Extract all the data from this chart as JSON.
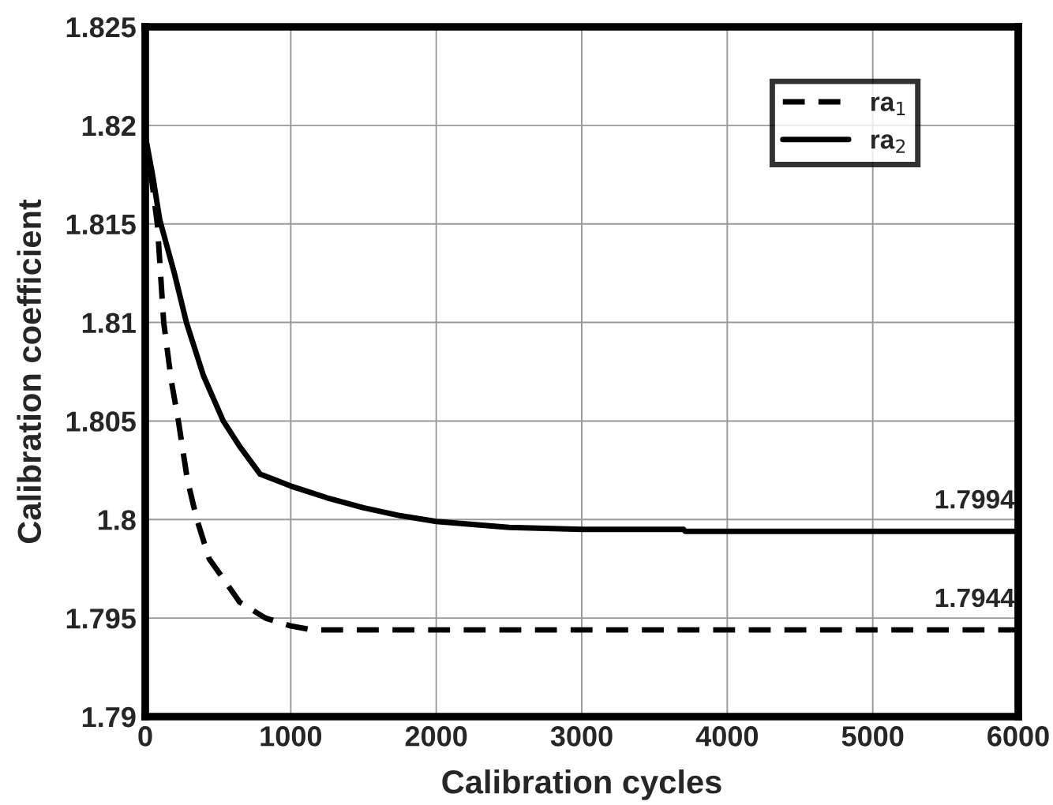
{
  "chart_data": {
    "type": "line",
    "xlabel": "Calibration cycles",
    "ylabel": "Calibration coefficient",
    "xlim": [
      0,
      6000
    ],
    "xticks": [
      0,
      1000,
      2000,
      3000,
      4000,
      5000,
      6000
    ],
    "ylim": [
      1.79,
      1.825
    ],
    "yticks": [
      1.79,
      1.795,
      1.8,
      1.805,
      1.81,
      1.815,
      1.82,
      1.825
    ],
    "grid": true,
    "legend": "top right",
    "series": [
      {
        "name": "ra$_{1}$",
        "color": "#000000",
        "line_style": "dashed",
        "x": [
          0,
          40,
          83,
          127,
          180,
          228,
          290,
          355,
          440,
          536,
          650,
          826,
          1000,
          1150,
          2000,
          3000,
          4000,
          5000,
          6000
        ],
        "values": [
          1.8195,
          1.8175,
          1.815,
          1.81,
          1.807,
          1.805,
          1.802,
          1.8,
          1.798,
          1.797,
          1.7958,
          1.795,
          1.7946,
          1.7944,
          1.7944,
          1.7944,
          1.7944,
          1.7944,
          1.7944
        ]
      },
      {
        "name": "ra$_{2}$",
        "color": "#000000",
        "line_style": "solid",
        "x": [
          0,
          50,
          100,
          200,
          283,
          400,
          536,
          650,
          790,
          1000,
          1250,
          1500,
          1750,
          2000,
          2500,
          3000,
          3700,
          3710,
          4500,
          5000,
          6000
        ],
        "values": [
          1.8195,
          1.8175,
          1.8152,
          1.8125,
          1.81,
          1.8073,
          1.805,
          1.8037,
          1.8023,
          1.8017,
          1.8011,
          1.8006,
          1.8002,
          1.7999,
          1.7996,
          1.7995,
          1.7995,
          1.7994,
          1.7994,
          1.7994,
          1.7994
        ]
      }
    ],
    "annotations": [
      {
        "text": "1.7994",
        "x": 5700,
        "y": 1.7994
      },
      {
        "text": "1.7944",
        "x": 5700,
        "y": 1.7944
      }
    ]
  }
}
